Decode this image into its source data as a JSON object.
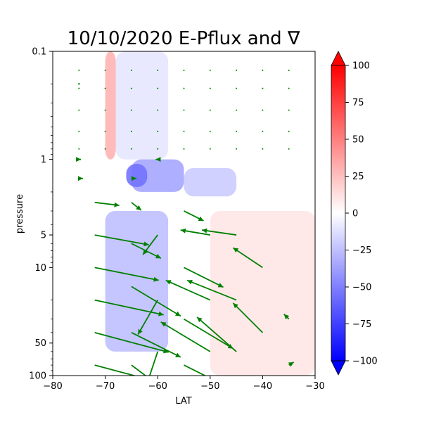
{
  "chart_data": {
    "type": "heatmap",
    "title": "10/10/2020 E-Pflux and ∇",
    "xlabel": "LAT",
    "ylabel": "pressure",
    "xlim": [
      -80,
      -30
    ],
    "ylim": [
      100,
      0.1
    ],
    "yscale": "log",
    "x_ticks": [
      -80,
      -70,
      -60,
      -50,
      -40,
      -30
    ],
    "x_tick_labels": [
      "−80",
      "−70",
      "−60",
      "−50",
      "−40",
      "−30"
    ],
    "y_ticks": [
      0.1,
      1,
      5,
      10,
      50,
      100
    ],
    "y_tick_labels": [
      "0.1",
      "1",
      "5",
      "10",
      "50",
      "100"
    ],
    "colorbar": {
      "colormap": "bwr",
      "min": -100,
      "max": 100,
      "extend": "both",
      "ticks": [
        100,
        75,
        50,
        25,
        0,
        -25,
        -50,
        -75,
        -100
      ],
      "tick_labels": [
        "100",
        "75",
        "50",
        "25",
        "0",
        "−25",
        "−50",
        "−75",
        "−100"
      ]
    },
    "contour_data": [
      {
        "lat_range": [
          -70,
          -68
        ],
        "p_range": [
          0.1,
          1
        ],
        "value": 30
      },
      {
        "lat_range": [
          -68,
          -58
        ],
        "p_range": [
          0.1,
          1
        ],
        "value": -10
      },
      {
        "lat_range": [
          -65,
          -55
        ],
        "p_range": [
          1,
          2
        ],
        "value": -35
      },
      {
        "lat_range": [
          -66,
          -62
        ],
        "p_range": [
          1.1,
          1.8
        ],
        "value": -55
      },
      {
        "lat_range": [
          -55,
          -45
        ],
        "p_range": [
          1.2,
          2.2
        ],
        "value": -20
      },
      {
        "lat_range": [
          -70,
          -58
        ],
        "p_range": [
          3,
          60
        ],
        "value": -25
      },
      {
        "lat_range": [
          -50,
          -30
        ],
        "p_range": [
          3,
          100
        ],
        "value": 10
      }
    ],
    "quiver_color": "#008000",
    "quiver_data": [
      {
        "lat": -75,
        "p": 0.2,
        "u": 0,
        "v": 0
      },
      {
        "lat": -75,
        "p": 1,
        "u": 0.2,
        "v": 0
      },
      {
        "lat": -75,
        "p": 1.5,
        "u": 0.4,
        "v": 0
      },
      {
        "lat": -72,
        "p": 2.5,
        "u": 2.5,
        "v": -0.3
      },
      {
        "lat": -72,
        "p": 5,
        "u": 5.5,
        "v": -1.0
      },
      {
        "lat": -72,
        "p": 10,
        "u": 6.5,
        "v": -1.3
      },
      {
        "lat": -72,
        "p": 20,
        "u": 7,
        "v": -1.5
      },
      {
        "lat": -72,
        "p": 40,
        "u": 7.5,
        "v": -2.0
      },
      {
        "lat": -72,
        "p": 80,
        "u": 7.5,
        "v": -2.0
      },
      {
        "lat": -65,
        "p": 1.5,
        "u": 0.5,
        "v": 0
      },
      {
        "lat": -65,
        "p": 2.5,
        "u": 1.0,
        "v": -0.8
      },
      {
        "lat": -65,
        "p": 6,
        "u": 3.0,
        "v": -1.5
      },
      {
        "lat": -65,
        "p": 15,
        "u": 5.0,
        "v": -3.0
      },
      {
        "lat": -65,
        "p": 40,
        "u": 5.0,
        "v": -2.5
      },
      {
        "lat": -65,
        "p": 80,
        "u": 4.0,
        "v": -3.0
      },
      {
        "lat": -60,
        "p": 1,
        "u": -0.2,
        "v": 0
      },
      {
        "lat": -60,
        "p": 5,
        "u": -1.5,
        "v": -2.0
      },
      {
        "lat": -60,
        "p": 20,
        "u": -2.0,
        "v": -3.5
      },
      {
        "lat": -60,
        "p": 60,
        "u": -1.0,
        "v": -3.0
      },
      {
        "lat": -55,
        "p": 3,
        "u": 2.0,
        "v": -1.0
      },
      {
        "lat": -55,
        "p": 10,
        "u": 4.0,
        "v": -2.0
      },
      {
        "lat": -55,
        "p": 30,
        "u": 5.0,
        "v": -3.0
      },
      {
        "lat": -55,
        "p": 80,
        "u": 4.0,
        "v": -2.0
      },
      {
        "lat": -50,
        "p": 5,
        "u": -3.0,
        "v": 0.5
      },
      {
        "lat": -50,
        "p": 20,
        "u": -4.5,
        "v": 2.0
      },
      {
        "lat": -50,
        "p": 60,
        "u": -5.0,
        "v": 3.0
      },
      {
        "lat": -45,
        "p": 5,
        "u": -3.5,
        "v": 0.5
      },
      {
        "lat": -45,
        "p": 20,
        "u": -5.0,
        "v": 2.0
      },
      {
        "lat": -45,
        "p": 60,
        "u": -4.0,
        "v": 3.5
      },
      {
        "lat": -40,
        "p": 10,
        "u": -3.0,
        "v": 2.0
      },
      {
        "lat": -40,
        "p": 40,
        "u": -3.0,
        "v": 3.0
      },
      {
        "lat": -35,
        "p": 30,
        "u": -0.5,
        "v": 0.5
      },
      {
        "lat": -35,
        "p": 80,
        "u": 0.5,
        "v": 0.3
      }
    ]
  }
}
